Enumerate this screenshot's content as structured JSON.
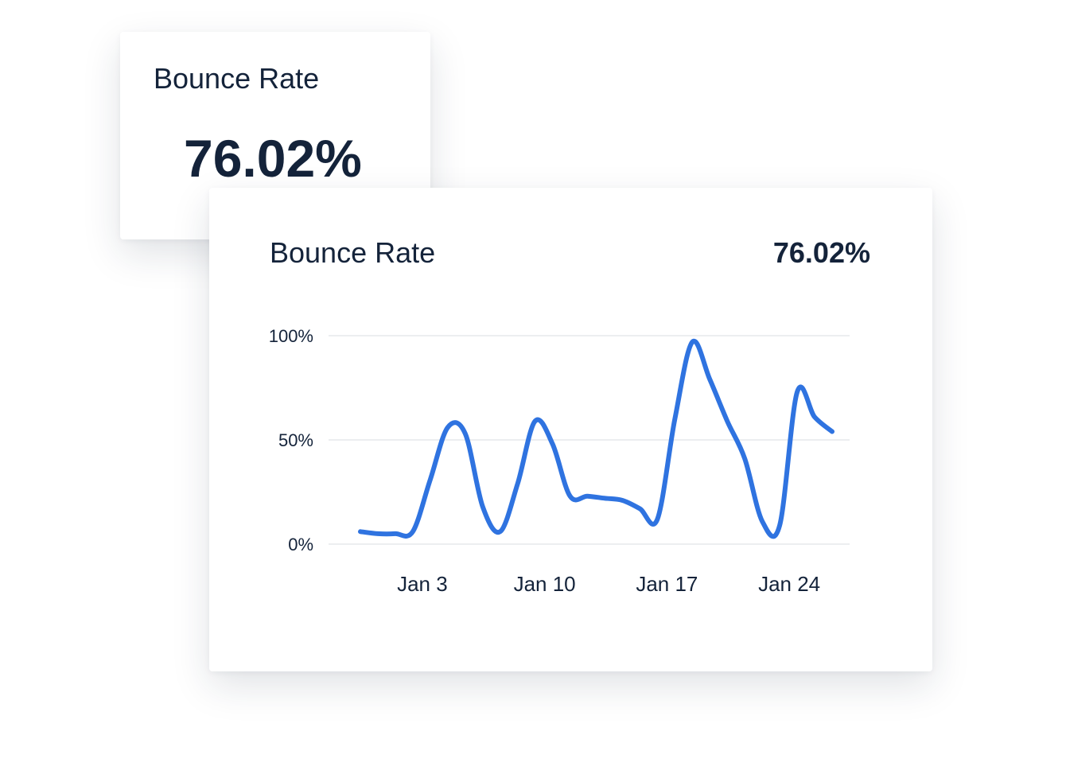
{
  "summary_card": {
    "title": "Bounce Rate",
    "value": "76.02%"
  },
  "chart_card": {
    "title": "Bounce Rate",
    "value": "76.02%"
  },
  "colors": {
    "line": "#2f73e0",
    "grid": "#e6e8ec",
    "text": "#14233a"
  },
  "chart_data": {
    "type": "line",
    "title": "Bounce Rate",
    "xlabel": "",
    "ylabel": "",
    "x_tick_labels": [
      "Jan 3",
      "Jan 10",
      "Jan 17",
      "Jan 24"
    ],
    "y_tick_labels": [
      "100%",
      "50%",
      "0%"
    ],
    "ylim": [
      0,
      100
    ],
    "grid": true,
    "series": [
      {
        "x": [
          "Dec 31",
          "Jan 1",
          "Jan 2",
          "Jan 3",
          "Jan 4",
          "Jan 5",
          "Jan 6",
          "Jan 7",
          "Jan 8",
          "Jan 9",
          "Jan 10",
          "Jan 11",
          "Jan 12",
          "Jan 13",
          "Jan 14",
          "Jan 15",
          "Jan 16",
          "Jan 17",
          "Jan 18",
          "Jan 19",
          "Jan 20",
          "Jan 21",
          "Jan 22",
          "Jan 23",
          "Jan 24",
          "Jan 25",
          "Jan 26",
          "Jan 27"
        ],
        "values": [
          6,
          5,
          5,
          6,
          31,
          56,
          53,
          18,
          6,
          29,
          59,
          48,
          23,
          23,
          22,
          21,
          17,
          12,
          60,
          97,
          79,
          59,
          41,
          11,
          9,
          73,
          61,
          54
        ]
      }
    ]
  }
}
